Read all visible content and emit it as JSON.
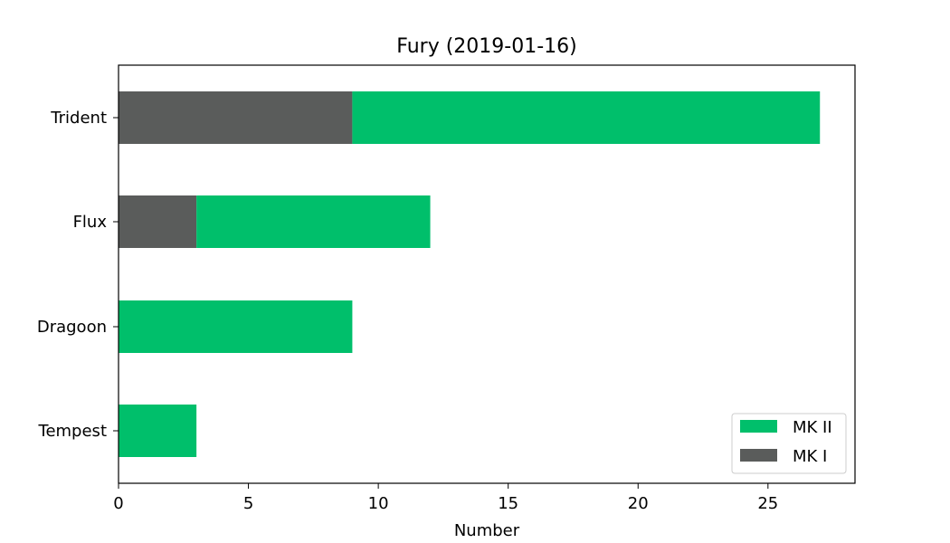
{
  "chart_data": {
    "type": "bar",
    "orientation": "horizontal",
    "stacked": true,
    "title": "Fury (2019-01-16)",
    "xlabel": "Number",
    "ylabel": "",
    "categories": [
      "Tempest",
      "Dragoon",
      "Flux",
      "Trident"
    ],
    "xlim": [
      0,
      28.35
    ],
    "xticks": [
      0,
      5,
      10,
      15,
      20,
      25
    ],
    "series": [
      {
        "name": "MK I",
        "color": "#5a5c5b",
        "values": [
          0,
          0,
          3,
          9
        ]
      },
      {
        "name": "MK II",
        "color": "#00bf6b",
        "values": [
          3,
          9,
          9,
          18
        ]
      }
    ],
    "legend": {
      "placement": "lower-right",
      "entries": [
        {
          "label": "MK II",
          "color": "#00bf6b"
        },
        {
          "label": "MK I",
          "color": "#5a5c5b"
        }
      ]
    },
    "grid": false
  }
}
